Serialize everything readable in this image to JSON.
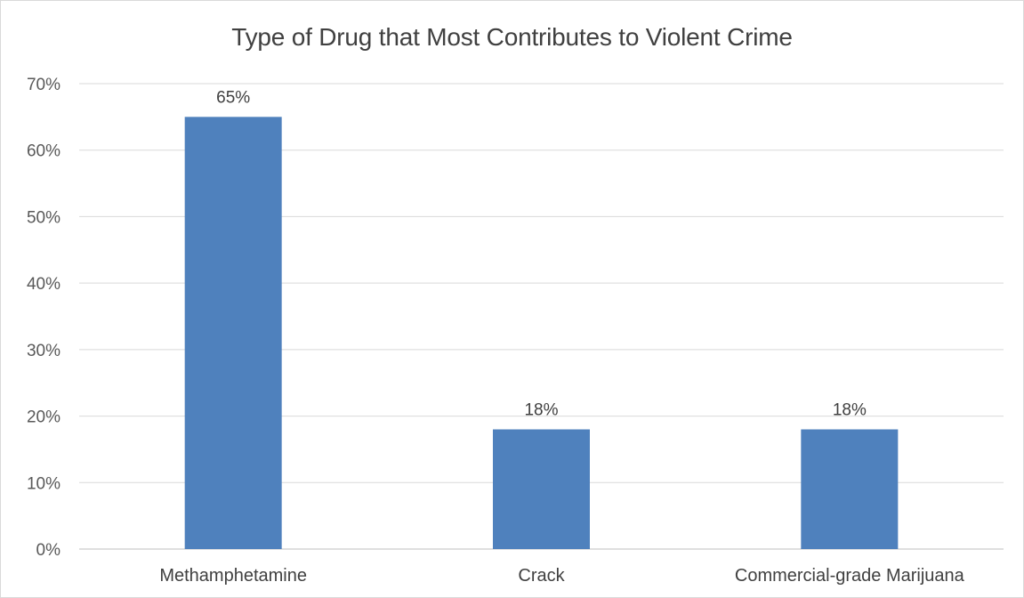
{
  "chart_data": {
    "type": "bar",
    "title": "Type of Drug that Most Contributes to Violent Crime",
    "categories": [
      "Methamphetamine",
      "Crack",
      "Commercial-grade Marijuana"
    ],
    "values": [
      65,
      18,
      18
    ],
    "data_labels": [
      "65%",
      "18%",
      "18%"
    ],
    "ylim": [
      0,
      70
    ],
    "yticks": [
      0,
      10,
      20,
      30,
      40,
      50,
      60,
      70
    ],
    "ytick_labels": [
      "0%",
      "10%",
      "20%",
      "30%",
      "40%",
      "50%",
      "60%",
      "70%"
    ],
    "xlabel": "",
    "ylabel": "",
    "grid": true,
    "legend": "none",
    "colors": {
      "bar": "#4f81bd",
      "grid": "#d9d9d9",
      "axis": "#bfbfbf",
      "text": "#404040",
      "tick_text": "#595959"
    }
  }
}
